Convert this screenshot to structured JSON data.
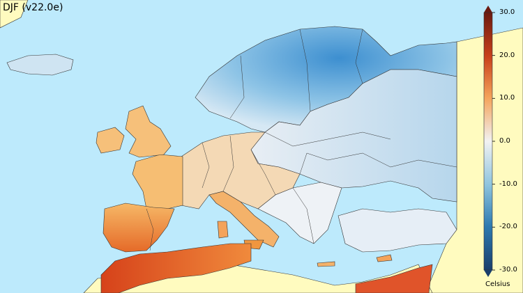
{
  "title": "DJF (v22.0e)",
  "colorbar": {
    "unit": "Celsius",
    "ticks": [
      "30.0",
      "20.0",
      "10.0",
      "0.0",
      "-10.0",
      "-20.0",
      "-30.0"
    ],
    "range": [
      -30,
      30
    ],
    "colors": [
      "#1a3e6b",
      "#2d7ab0",
      "#8ec4de",
      "#f0f0f0",
      "#f5c98a",
      "#d8571f",
      "#6b1a10"
    ]
  },
  "colors": {
    "sea": "#bdeafc",
    "land_outside_data": "#fffbbf",
    "border": "#222222"
  }
}
